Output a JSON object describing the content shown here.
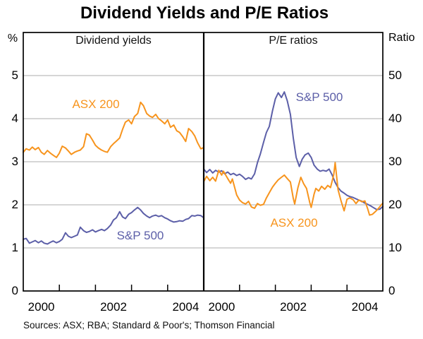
{
  "title": "Dividend Yields and P/E Ratios",
  "source_note": "Sources: ASX; RBA; Standard & Poor's; Thomson Financial",
  "colors": {
    "asx200": "#F7941D",
    "sp500": "#5C5FA8",
    "gridline": "#ADADAD",
    "frame": "#000000"
  },
  "chart_data": [
    {
      "type": "line",
      "panel": "left",
      "title": "Dividend yields",
      "ylabel": "%",
      "ylim": [
        0,
        6
      ],
      "yticks": [
        0,
        1,
        2,
        3,
        4,
        5
      ],
      "xlim": [
        2000,
        2005
      ],
      "xticks": [
        2001,
        2002,
        2003,
        2004
      ],
      "xtick_labels": [
        {
          "x": 2000.5,
          "label": "2000"
        },
        {
          "x": 2002.5,
          "label": "2002"
        },
        {
          "x": 2004.5,
          "label": "2004"
        }
      ],
      "grid": true,
      "series": [
        {
          "name": "ASX 200",
          "color": "#F7941D",
          "points": [
            [
              2000.0,
              3.22
            ],
            [
              2000.08,
              3.3
            ],
            [
              2000.17,
              3.27
            ],
            [
              2000.25,
              3.34
            ],
            [
              2000.33,
              3.28
            ],
            [
              2000.42,
              3.33
            ],
            [
              2000.5,
              3.22
            ],
            [
              2000.58,
              3.17
            ],
            [
              2000.67,
              3.26
            ],
            [
              2000.75,
              3.2
            ],
            [
              2000.83,
              3.15
            ],
            [
              2000.92,
              3.1
            ],
            [
              2001.0,
              3.2
            ],
            [
              2001.08,
              3.36
            ],
            [
              2001.17,
              3.32
            ],
            [
              2001.25,
              3.25
            ],
            [
              2001.33,
              3.17
            ],
            [
              2001.42,
              3.22
            ],
            [
              2001.5,
              3.25
            ],
            [
              2001.58,
              3.27
            ],
            [
              2001.67,
              3.35
            ],
            [
              2001.75,
              3.65
            ],
            [
              2001.83,
              3.62
            ],
            [
              2001.92,
              3.5
            ],
            [
              2002.0,
              3.38
            ],
            [
              2002.08,
              3.32
            ],
            [
              2002.17,
              3.27
            ],
            [
              2002.25,
              3.24
            ],
            [
              2002.33,
              3.22
            ],
            [
              2002.42,
              3.35
            ],
            [
              2002.5,
              3.42
            ],
            [
              2002.58,
              3.48
            ],
            [
              2002.67,
              3.55
            ],
            [
              2002.75,
              3.75
            ],
            [
              2002.83,
              3.92
            ],
            [
              2002.92,
              3.97
            ],
            [
              2003.0,
              3.88
            ],
            [
              2003.08,
              4.05
            ],
            [
              2003.17,
              4.12
            ],
            [
              2003.25,
              4.38
            ],
            [
              2003.33,
              4.3
            ],
            [
              2003.42,
              4.12
            ],
            [
              2003.5,
              4.06
            ],
            [
              2003.58,
              4.03
            ],
            [
              2003.67,
              4.1
            ],
            [
              2003.75,
              4.0
            ],
            [
              2003.83,
              3.95
            ],
            [
              2003.92,
              3.88
            ],
            [
              2004.0,
              3.97
            ],
            [
              2004.08,
              3.8
            ],
            [
              2004.17,
              3.85
            ],
            [
              2004.25,
              3.72
            ],
            [
              2004.33,
              3.68
            ],
            [
              2004.42,
              3.58
            ],
            [
              2004.5,
              3.47
            ],
            [
              2004.58,
              3.77
            ],
            [
              2004.67,
              3.7
            ],
            [
              2004.75,
              3.6
            ],
            [
              2004.83,
              3.44
            ],
            [
              2004.92,
              3.3
            ],
            [
              2005.0,
              3.33
            ]
          ]
        },
        {
          "name": "S&P 500",
          "color": "#5C5FA8",
          "points": [
            [
              2000.0,
              1.2
            ],
            [
              2000.08,
              1.22
            ],
            [
              2000.17,
              1.11
            ],
            [
              2000.25,
              1.14
            ],
            [
              2000.33,
              1.17
            ],
            [
              2000.42,
              1.12
            ],
            [
              2000.5,
              1.16
            ],
            [
              2000.58,
              1.11
            ],
            [
              2000.67,
              1.09
            ],
            [
              2000.75,
              1.13
            ],
            [
              2000.83,
              1.16
            ],
            [
              2000.92,
              1.12
            ],
            [
              2001.0,
              1.15
            ],
            [
              2001.08,
              1.2
            ],
            [
              2001.17,
              1.35
            ],
            [
              2001.25,
              1.27
            ],
            [
              2001.33,
              1.24
            ],
            [
              2001.42,
              1.27
            ],
            [
              2001.5,
              1.3
            ],
            [
              2001.58,
              1.48
            ],
            [
              2001.67,
              1.4
            ],
            [
              2001.75,
              1.36
            ],
            [
              2001.83,
              1.38
            ],
            [
              2001.92,
              1.42
            ],
            [
              2002.0,
              1.37
            ],
            [
              2002.08,
              1.4
            ],
            [
              2002.17,
              1.43
            ],
            [
              2002.25,
              1.4
            ],
            [
              2002.33,
              1.45
            ],
            [
              2002.42,
              1.53
            ],
            [
              2002.5,
              1.65
            ],
            [
              2002.58,
              1.7
            ],
            [
              2002.67,
              1.84
            ],
            [
              2002.75,
              1.72
            ],
            [
              2002.83,
              1.68
            ],
            [
              2002.92,
              1.78
            ],
            [
              2003.0,
              1.82
            ],
            [
              2003.08,
              1.88
            ],
            [
              2003.17,
              1.94
            ],
            [
              2003.25,
              1.88
            ],
            [
              2003.33,
              1.8
            ],
            [
              2003.42,
              1.74
            ],
            [
              2003.5,
              1.7
            ],
            [
              2003.58,
              1.74
            ],
            [
              2003.67,
              1.76
            ],
            [
              2003.75,
              1.73
            ],
            [
              2003.83,
              1.75
            ],
            [
              2003.92,
              1.7
            ],
            [
              2004.0,
              1.67
            ],
            [
              2004.08,
              1.63
            ],
            [
              2004.17,
              1.6
            ],
            [
              2004.25,
              1.61
            ],
            [
              2004.33,
              1.63
            ],
            [
              2004.42,
              1.62
            ],
            [
              2004.5,
              1.66
            ],
            [
              2004.58,
              1.68
            ],
            [
              2004.67,
              1.75
            ],
            [
              2004.75,
              1.74
            ],
            [
              2004.83,
              1.76
            ],
            [
              2004.92,
              1.75
            ],
            [
              2005.0,
              1.7
            ]
          ]
        }
      ]
    },
    {
      "type": "line",
      "panel": "right",
      "title": "P/E ratios",
      "ylabel": "Ratio",
      "ylim": [
        0,
        60
      ],
      "yticks": [
        0,
        10,
        20,
        30,
        40,
        50
      ],
      "xlim": [
        2000,
        2005
      ],
      "xticks": [
        2001,
        2002,
        2003,
        2004
      ],
      "xtick_labels": [
        {
          "x": 2000.5,
          "label": "2000"
        },
        {
          "x": 2002.5,
          "label": "2002"
        },
        {
          "x": 2004.5,
          "label": "2004"
        }
      ],
      "grid": true,
      "series": [
        {
          "name": "S&P 500",
          "color": "#5C5FA8",
          "points": [
            [
              2000.0,
              28.3
            ],
            [
              2000.08,
              27.5
            ],
            [
              2000.17,
              28.2
            ],
            [
              2000.25,
              27.4
            ],
            [
              2000.33,
              28.0
            ],
            [
              2000.42,
              27.6
            ],
            [
              2000.5,
              27.9
            ],
            [
              2000.58,
              27.2
            ],
            [
              2000.67,
              27.6
            ],
            [
              2000.75,
              27.0
            ],
            [
              2000.83,
              27.3
            ],
            [
              2000.92,
              26.8
            ],
            [
              2001.0,
              27.1
            ],
            [
              2001.08,
              26.6
            ],
            [
              2001.17,
              25.9
            ],
            [
              2001.25,
              26.3
            ],
            [
              2001.33,
              26.0
            ],
            [
              2001.42,
              27.2
            ],
            [
              2001.5,
              29.8
            ],
            [
              2001.58,
              31.8
            ],
            [
              2001.67,
              34.5
            ],
            [
              2001.75,
              36.8
            ],
            [
              2001.83,
              38.2
            ],
            [
              2001.92,
              41.8
            ],
            [
              2002.0,
              44.6
            ],
            [
              2002.08,
              46.0
            ],
            [
              2002.17,
              44.9
            ],
            [
              2002.25,
              46.2
            ],
            [
              2002.33,
              44.2
            ],
            [
              2002.42,
              41.0
            ],
            [
              2002.5,
              35.5
            ],
            [
              2002.58,
              31.0
            ],
            [
              2002.67,
              28.9
            ],
            [
              2002.75,
              30.6
            ],
            [
              2002.83,
              31.6
            ],
            [
              2002.92,
              32.0
            ],
            [
              2003.0,
              31.0
            ],
            [
              2003.08,
              29.2
            ],
            [
              2003.17,
              28.3
            ],
            [
              2003.25,
              27.8
            ],
            [
              2003.33,
              28.0
            ],
            [
              2003.42,
              27.8
            ],
            [
              2003.5,
              28.3
            ],
            [
              2003.58,
              27.0
            ],
            [
              2003.67,
              25.2
            ],
            [
              2003.75,
              24.0
            ],
            [
              2003.83,
              23.2
            ],
            [
              2003.92,
              22.7
            ],
            [
              2004.0,
              22.2
            ],
            [
              2004.08,
              21.9
            ],
            [
              2004.17,
              21.7
            ],
            [
              2004.25,
              21.4
            ],
            [
              2004.33,
              21.1
            ],
            [
              2004.42,
              20.8
            ],
            [
              2004.5,
              20.4
            ],
            [
              2004.58,
              20.1
            ],
            [
              2004.67,
              19.7
            ],
            [
              2004.75,
              19.3
            ],
            [
              2004.83,
              18.9
            ],
            [
              2004.92,
              19.0
            ],
            [
              2005.0,
              19.6
            ]
          ]
        },
        {
          "name": "ASX 200",
          "color": "#F7941D",
          "points": [
            [
              2000.0,
              25.4
            ],
            [
              2000.08,
              26.6
            ],
            [
              2000.17,
              25.6
            ],
            [
              2000.25,
              26.4
            ],
            [
              2000.33,
              25.5
            ],
            [
              2000.42,
              28.0
            ],
            [
              2000.5,
              26.9
            ],
            [
              2000.55,
              27.8
            ],
            [
              2000.67,
              26.1
            ],
            [
              2000.75,
              25.0
            ],
            [
              2000.8,
              26.0
            ],
            [
              2000.92,
              22.3
            ],
            [
              2001.0,
              21.1
            ],
            [
              2001.08,
              20.5
            ],
            [
              2001.17,
              20.2
            ],
            [
              2001.25,
              20.8
            ],
            [
              2001.33,
              19.5
            ],
            [
              2001.42,
              19.2
            ],
            [
              2001.5,
              20.3
            ],
            [
              2001.58,
              19.9
            ],
            [
              2001.67,
              20.1
            ],
            [
              2001.75,
              21.6
            ],
            [
              2001.83,
              22.8
            ],
            [
              2001.92,
              24.1
            ],
            [
              2002.0,
              25.0
            ],
            [
              2002.08,
              25.8
            ],
            [
              2002.17,
              26.4
            ],
            [
              2002.25,
              26.9
            ],
            [
              2002.33,
              26.1
            ],
            [
              2002.42,
              25.3
            ],
            [
              2002.5,
              21.5
            ],
            [
              2002.54,
              20.2
            ],
            [
              2002.63,
              24.0
            ],
            [
              2002.71,
              26.4
            ],
            [
              2002.79,
              24.9
            ],
            [
              2002.87,
              23.8
            ],
            [
              2002.96,
              20.5
            ],
            [
              2003.0,
              19.4
            ],
            [
              2003.08,
              22.5
            ],
            [
              2003.13,
              23.8
            ],
            [
              2003.21,
              23.2
            ],
            [
              2003.29,
              24.3
            ],
            [
              2003.38,
              23.6
            ],
            [
              2003.46,
              24.5
            ],
            [
              2003.54,
              24.0
            ],
            [
              2003.63,
              27.0
            ],
            [
              2003.67,
              29.8
            ],
            [
              2003.75,
              23.5
            ],
            [
              2003.83,
              21.0
            ],
            [
              2003.92,
              18.6
            ],
            [
              2004.0,
              21.3
            ],
            [
              2004.08,
              21.6
            ],
            [
              2004.17,
              21.2
            ],
            [
              2004.25,
              20.3
            ],
            [
              2004.33,
              21.1
            ],
            [
              2004.42,
              20.7
            ],
            [
              2004.5,
              20.9
            ],
            [
              2004.58,
              19.0
            ],
            [
              2004.63,
              17.6
            ],
            [
              2004.71,
              17.8
            ],
            [
              2004.79,
              18.4
            ],
            [
              2004.88,
              19.2
            ],
            [
              2005.0,
              20.4
            ]
          ]
        }
      ]
    }
  ]
}
